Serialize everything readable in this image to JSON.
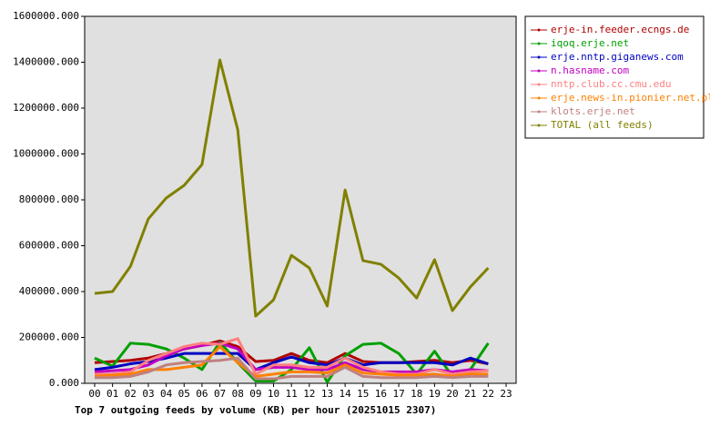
{
  "chart_data": {
    "type": "line",
    "title": "Top 7 outgoing feeds by volume (KB) per hour (20251015 2307)",
    "categories": [
      "00",
      "01",
      "02",
      "03",
      "04",
      "05",
      "06",
      "07",
      "08",
      "09",
      "10",
      "11",
      "12",
      "13",
      "14",
      "15",
      "16",
      "17",
      "18",
      "19",
      "20",
      "21",
      "22",
      "23"
    ],
    "ylim": [
      0,
      1600000
    ],
    "yticks": [
      {
        "value": 0,
        "label": "0.000"
      },
      {
        "value": 200000,
        "label": "200000.000"
      },
      {
        "value": 400000,
        "label": "400000.000"
      },
      {
        "value": 600000,
        "label": "600000.000"
      },
      {
        "value": 800000,
        "label": "800000.000"
      },
      {
        "value": 1000000,
        "label": "1000000.000"
      },
      {
        "value": 1200000,
        "label": "1200000.000"
      },
      {
        "value": 1400000,
        "label": "1400000.000"
      },
      {
        "value": 1600000,
        "label": "1600000.000"
      }
    ],
    "legend": "right",
    "series": [
      {
        "name": "erje-in.feeder.ecngs.de",
        "color": "#b00000",
        "values": [
          90000,
          95000,
          100000,
          110000,
          130000,
          150000,
          165000,
          185000,
          160000,
          95000,
          100000,
          130000,
          100000,
          90000,
          130000,
          95000,
          90000,
          90000,
          95000,
          100000,
          90000,
          100000,
          85000,
          null
        ]
      },
      {
        "name": "iqoq.erje.net",
        "color": "#00a000",
        "values": [
          110000,
          75000,
          175000,
          170000,
          150000,
          110000,
          60000,
          180000,
          90000,
          10000,
          10000,
          60000,
          155000,
          5000,
          120000,
          170000,
          175000,
          130000,
          40000,
          140000,
          30000,
          60000,
          175000,
          null
        ]
      },
      {
        "name": "erje.nntp.giganews.com",
        "color": "#0000c0",
        "values": [
          60000,
          70000,
          85000,
          95000,
          110000,
          130000,
          130000,
          130000,
          130000,
          60000,
          90000,
          115000,
          90000,
          80000,
          110000,
          80000,
          90000,
          90000,
          90000,
          90000,
          80000,
          110000,
          85000,
          null
        ]
      },
      {
        "name": "n.hasname.com",
        "color": "#c000c0",
        "values": [
          50000,
          55000,
          60000,
          80000,
          120000,
          150000,
          165000,
          175000,
          150000,
          60000,
          70000,
          70000,
          60000,
          60000,
          90000,
          60000,
          50000,
          50000,
          50000,
          60000,
          50000,
          60000,
          55000,
          null
        ]
      },
      {
        "name": "nntp.club.cc.cmu.edu",
        "color": "#ff8080",
        "values": [
          40000,
          40000,
          50000,
          100000,
          130000,
          160000,
          175000,
          170000,
          195000,
          40000,
          80000,
          80000,
          70000,
          70000,
          110000,
          70000,
          50000,
          40000,
          40000,
          60000,
          40000,
          50000,
          55000,
          null
        ]
      },
      {
        "name": "erje.news-in.pionier.net.pl",
        "color": "#ff8000",
        "values": [
          30000,
          35000,
          40000,
          60000,
          60000,
          70000,
          80000,
          160000,
          90000,
          30000,
          40000,
          50000,
          50000,
          45000,
          80000,
          45000,
          40000,
          35000,
          35000,
          40000,
          30000,
          40000,
          40000,
          null
        ]
      },
      {
        "name": "klots.erje.net",
        "color": "#c08080",
        "values": [
          25000,
          25000,
          30000,
          50000,
          80000,
          90000,
          95000,
          100000,
          110000,
          20000,
          20000,
          30000,
          30000,
          30000,
          70000,
          30000,
          25000,
          25000,
          25000,
          30000,
          25000,
          30000,
          30000,
          null
        ]
      },
      {
        "name": "TOTAL (all feeds)",
        "color": "#808000",
        "values": [
          392000,
          400000,
          510000,
          717000,
          808000,
          863000,
          954000,
          1410000,
          1105000,
          293000,
          364000,
          558000,
          503000,
          337000,
          843000,
          535000,
          519000,
          459000,
          372000,
          539000,
          317000,
          420000,
          503000,
          null
        ]
      }
    ]
  }
}
